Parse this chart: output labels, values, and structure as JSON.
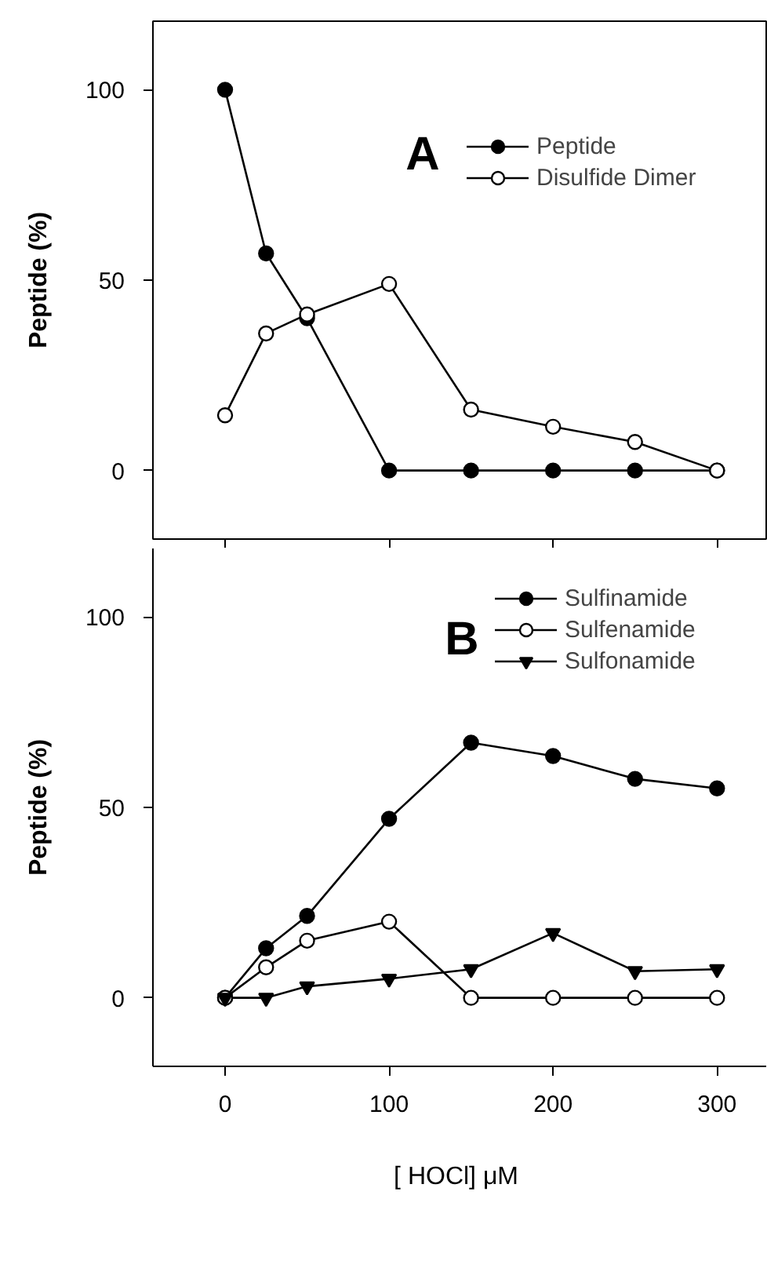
{
  "chart_data": [
    {
      "type": "line",
      "ylabel": "Peptide (%)",
      "annotations": [
        "A"
      ],
      "x": [
        0,
        25,
        50,
        100,
        150,
        200,
        250,
        300
      ],
      "series": [
        {
          "name": "Peptide",
          "color": "#000000",
          "marker": "circle",
          "values": [
            100,
            57,
            40,
            0,
            0,
            0,
            0,
            0
          ]
        },
        {
          "name": "Disulfide Dimer",
          "color": "#ffffff",
          "marker": "circle",
          "values": [
            14.5,
            36,
            41,
            49,
            16,
            11.5,
            7.5,
            0
          ]
        }
      ],
      "xlim": [
        -44,
        330
      ],
      "xticks": [
        {
          "value": 0,
          "label": null
        },
        {
          "value": 100,
          "label": null
        },
        {
          "value": 200,
          "label": null
        },
        {
          "value": 300,
          "label": null
        }
      ],
      "ylim": [
        -18,
        118
      ],
      "yticks": [
        0,
        50,
        100
      ],
      "tick_labels": "y",
      "grid": false,
      "legend": "top right",
      "line_style": "solid"
    },
    {
      "type": "line",
      "ylabel": "Peptide (%)",
      "xlabel": "[ HOCl]  μM",
      "annotations": [
        "B"
      ],
      "x": [
        0,
        25,
        50,
        100,
        150,
        200,
        250,
        300
      ],
      "series": [
        {
          "name": "Sulfinamide",
          "color": "#000000",
          "marker": "circle",
          "values": [
            0,
            13,
            21.5,
            47,
            67,
            63.5,
            57.5,
            55
          ]
        },
        {
          "name": "Sulfenamide",
          "color": "#ffffff",
          "marker": "circle",
          "values": [
            0,
            8,
            15,
            20,
            0,
            0,
            0,
            0
          ]
        },
        {
          "name": "Sulfonamide",
          "color": "#000000",
          "marker": "triangle",
          "values": [
            0,
            0,
            3,
            5,
            7.5,
            17,
            7,
            7.5
          ]
        }
      ],
      "xlim": [
        -44,
        330
      ],
      "xticks": [
        0,
        100,
        200,
        300
      ],
      "ylim": [
        -18,
        118
      ],
      "yticks": [
        0,
        50,
        100
      ],
      "grid": false,
      "legend": "top right",
      "line_style": "solid"
    }
  ]
}
